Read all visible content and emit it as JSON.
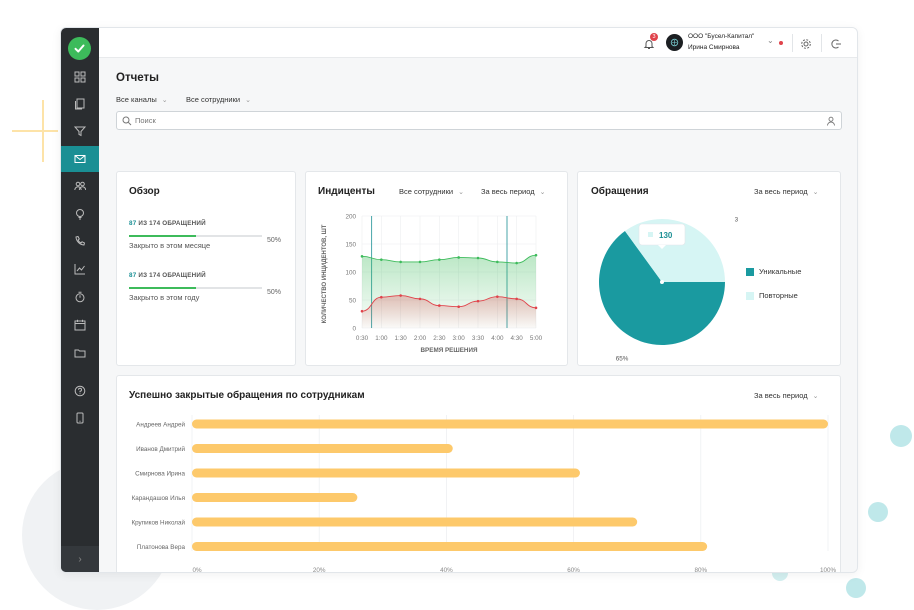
{
  "colors": {
    "accent": "#1a8f94",
    "sidebar": "#2a2d30",
    "logo": "#3dbb5b",
    "bar": "#fdc96b",
    "green_series": "#3dbb5b",
    "red_series": "#e0434b",
    "pie_light": "#d6f5f4",
    "pie_dark": "#1a9aa0"
  },
  "topbar": {
    "notification_count": "3",
    "company": "ООО \"Бусел-Капитал\"",
    "user": "Ирина Смирнова"
  },
  "page": {
    "title": "Отчеты",
    "filter_channels": "Все каналы",
    "filter_employees": "Все сотрудники",
    "search_placeholder": "Поиск"
  },
  "sidebar": {
    "icons": [
      "dashboard-icon",
      "documents-icon",
      "filter-icon",
      "mail-icon",
      "users-icon",
      "lightbulb-icon",
      "phone-icon",
      "chart-icon",
      "timer-icon",
      "calendar-icon",
      "folder-icon",
      "help-icon",
      "mobile-icon"
    ],
    "expand_label": "›"
  },
  "overview": {
    "title": "Обзор",
    "rows": [
      {
        "count": "87",
        "suffix": "ИЗ 174 ОБРАЩЕНИЙ",
        "label": "Закрыто в этом месяце",
        "percent": "50%",
        "fraction": 0.5
      },
      {
        "count": "87",
        "suffix": "ИЗ 174 ОБРАЩЕНИЙ",
        "label": "Закрыто в этом году",
        "percent": "50%",
        "fraction": 0.5
      }
    ]
  },
  "incidents": {
    "title": "Индиценты",
    "filter_employees": "Все сотрудники",
    "filter_period": "За весь период"
  },
  "requests": {
    "title": "Обращения",
    "filter_period": "За весь период"
  },
  "employees": {
    "title": "Успешно закрытые обращения по сотрудникам",
    "filter_period": "За весь период"
  },
  "chart_data": [
    {
      "type": "line",
      "ylabel": "КОЛИЧЕСТВО ИНЦИДЕНТОВ, ШТ",
      "xlabel": "ВРЕМЯ РЕШЕНИЯ",
      "x": [
        "0:30",
        "1:00",
        "1:30",
        "2:00",
        "2:30",
        "3:00",
        "3:30",
        "4:00",
        "4:30",
        "5:00"
      ],
      "ylim": [
        0,
        200
      ],
      "yticks": [
        "200",
        "150",
        "100",
        "50",
        "0"
      ],
      "series": [
        {
          "values": [
            128,
            122,
            118,
            118,
            122,
            126,
            125,
            118,
            116,
            130
          ]
        },
        {
          "values": [
            30,
            55,
            58,
            52,
            40,
            38,
            48,
            56,
            52,
            36
          ]
        }
      ]
    },
    {
      "type": "pie",
      "slices": [
        {
          "name": "Уникальные",
          "value": 65,
          "label": "65%"
        },
        {
          "name": "Повторные",
          "value": 35,
          "label": "35%"
        }
      ],
      "tooltip": "130",
      "legend": "right"
    },
    {
      "type": "bar",
      "orientation": "horizontal",
      "categories": [
        "Андреев Андрей",
        "Иванов Дмитрий",
        "Смирнова Ирина",
        "Карандашов Илья",
        "Крупиков Николай",
        "Платонова Вера"
      ],
      "values": [
        100,
        41,
        61,
        26,
        70,
        81
      ],
      "xlim": [
        0,
        100
      ],
      "xticks": [
        "0%",
        "20%",
        "40%",
        "60%",
        "80%",
        "100%"
      ]
    }
  ]
}
